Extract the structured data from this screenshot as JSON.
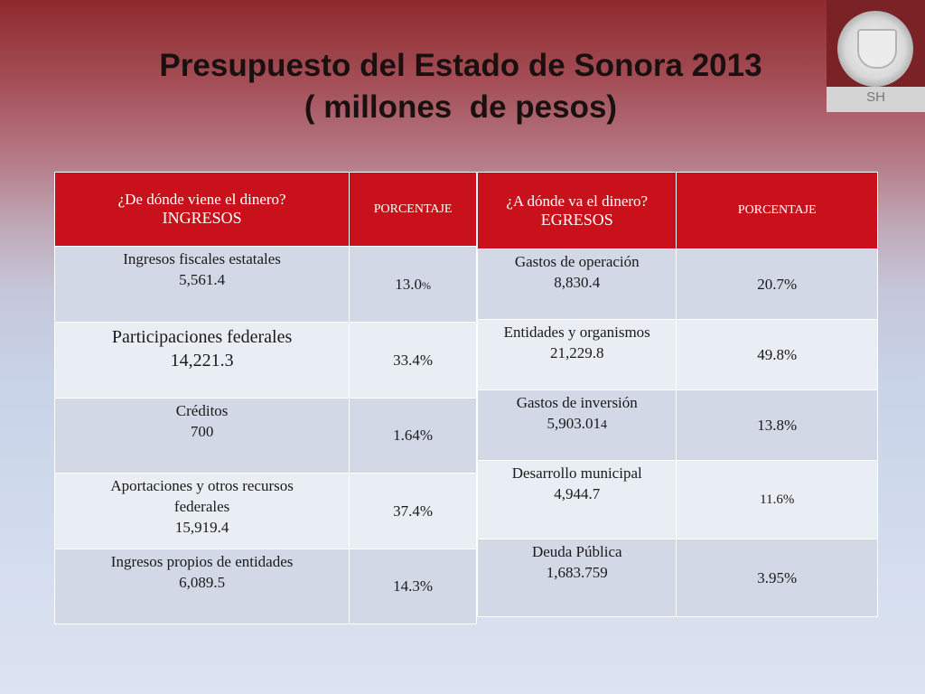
{
  "title": {
    "line1": "Presupuesto del Estado de Sonora 2013",
    "line2": "( millones  de pesos)"
  },
  "logo": {
    "label": "SH"
  },
  "ingresos": {
    "question": "¿De dónde viene el dinero?",
    "label": "INGRESOS",
    "pct_header": "PORCENTAJE",
    "rows": [
      {
        "name": "Ingresos fiscales estatales",
        "amount": "5,561.4",
        "pct": "13.0",
        "pct_unit": "%"
      },
      {
        "name": "Participaciones federales",
        "amount": "14,221.3",
        "pct": "33.4%"
      },
      {
        "name": "Créditos",
        "amount": "700",
        "pct": "1.64%"
      },
      {
        "name": "Aportaciones y otros recursos",
        "name2": "federales",
        "amount": "15,919.4",
        "pct": "37.4%"
      },
      {
        "name": "Ingresos propios de entidades",
        "amount": "6,089.5",
        "pct": "14.3%"
      }
    ]
  },
  "egresos": {
    "question": "¿A dónde va el dinero?",
    "label": "EGRESOS",
    "pct_header": "PORCENTAJE",
    "rows": [
      {
        "name": "Gastos de operación",
        "amount": "8,830.4",
        "pct": "20.7%"
      },
      {
        "name": "Entidades y organismos",
        "amount": "21,229.8",
        "pct": "49.8%"
      },
      {
        "name": "Gastos de inversión",
        "amount": "5,903.01",
        "amount_suffix": "4",
        "pct": "13.8%"
      },
      {
        "name": "Desarrollo municipal",
        "amount": "4,944.7",
        "pct": "11.6%"
      },
      {
        "name": "Deuda Pública",
        "amount": "1,683.759",
        "pct": "3.95%"
      }
    ]
  }
}
